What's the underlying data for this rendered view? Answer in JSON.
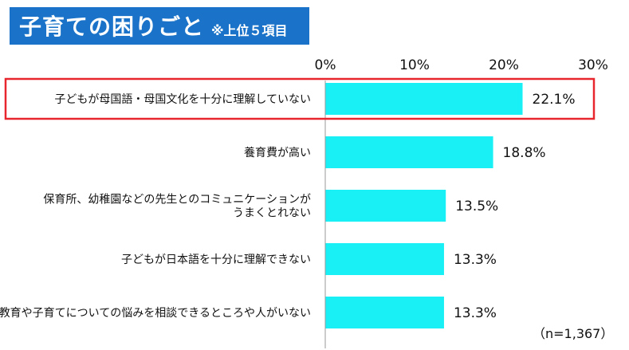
{
  "title": {
    "main": "子育ての困りごと",
    "sub": "※上位５項目"
  },
  "note": "（n=1,367）",
  "colors": {
    "title_bg": "#1a73c8",
    "bar": "#19f0f5",
    "highlight_border": "#e8262d",
    "axis": "#9a9a9a"
  },
  "chart_data": {
    "type": "bar",
    "orientation": "horizontal",
    "categories": [
      [
        "子どもが母国語・母国文化を十分に理解していない"
      ],
      [
        "養育費が高い"
      ],
      [
        "保育所、幼稚園などの先生とのコミュニケーションが",
        "うまくとれない"
      ],
      [
        "子どもが日本語を十分に理解できない"
      ],
      [
        "教育や子育てについての悩みを相談できるところや人がいない"
      ]
    ],
    "values": [
      22.1,
      18.8,
      13.5,
      13.3,
      13.3
    ],
    "value_labels": [
      "22.1%",
      "18.8%",
      "13.5%",
      "13.3%",
      "13.3%"
    ],
    "xlim": [
      0,
      30
    ],
    "ticks": [
      0,
      10,
      20,
      30
    ],
    "tick_labels": [
      "0%",
      "10%",
      "20%",
      "30%"
    ],
    "highlighted_category_index": 0,
    "axis_position": "top",
    "grid": false
  }
}
